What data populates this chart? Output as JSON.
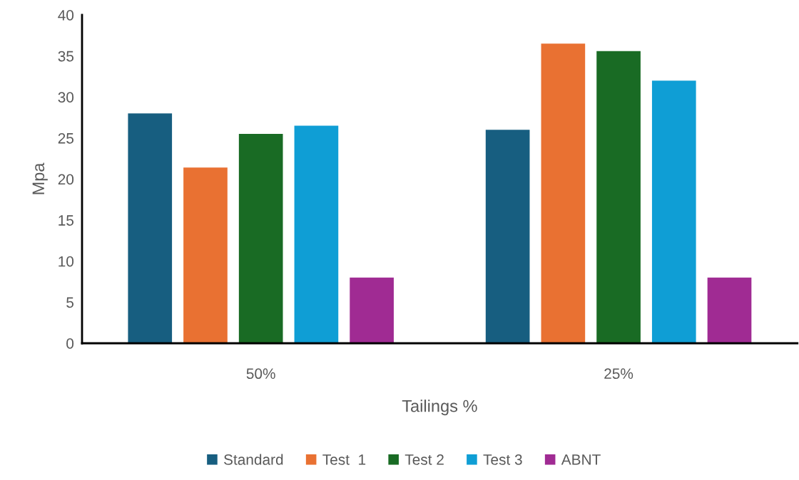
{
  "chart_data": {
    "type": "bar",
    "xlabel": "Tailings %",
    "ylabel": "Mpa",
    "categories": [
      "50%",
      "25%"
    ],
    "series": [
      {
        "name": "Standard",
        "color": "#175e80",
        "values": [
          28,
          26
        ]
      },
      {
        "name": "Test  1",
        "color": "#e97132",
        "values": [
          21.4,
          36.5
        ]
      },
      {
        "name": "Test 2",
        "color": "#196b24",
        "values": [
          25.5,
          35.6
        ]
      },
      {
        "name": "Test 3",
        "color": "#0f9ed5",
        "values": [
          26.5,
          32
        ]
      },
      {
        "name": "ABNT",
        "color": "#a02b93",
        "values": [
          8,
          8
        ]
      }
    ],
    "ylim": [
      0,
      40
    ],
    "yticks": [
      0,
      5,
      10,
      15,
      20,
      25,
      30,
      35,
      40
    ],
    "grid": false,
    "legend": "bottom"
  }
}
